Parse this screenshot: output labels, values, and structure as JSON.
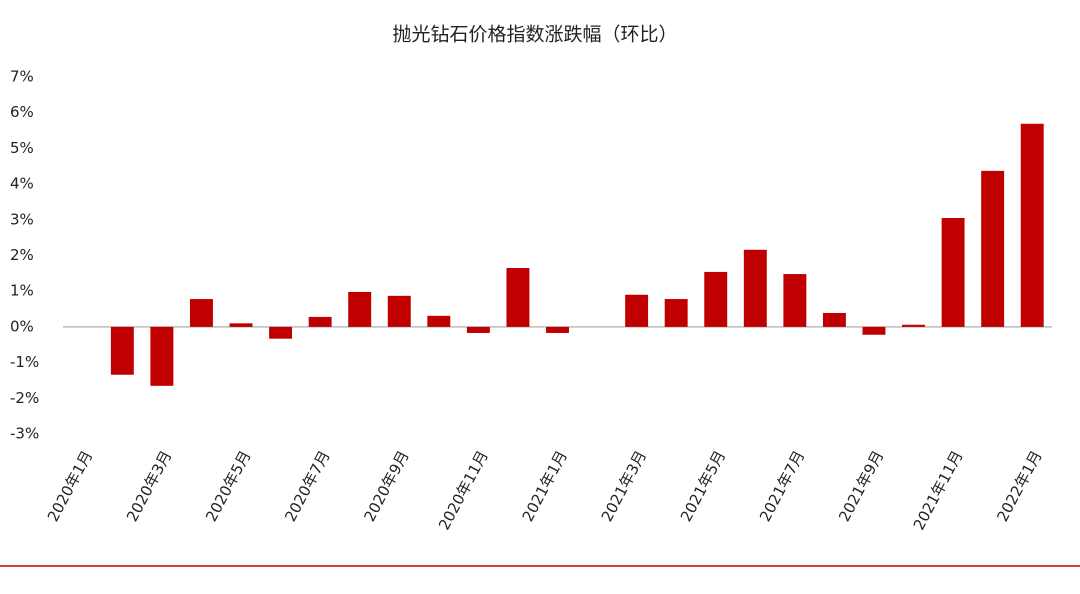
{
  "chart_data": {
    "type": "bar",
    "title": "抛光钻石价格指数涨跌幅（环比）",
    "categories": [
      "2020年1月",
      null,
      "2020年3月",
      null,
      "2020年5月",
      null,
      "2020年7月",
      null,
      "2020年9月",
      null,
      "2020年11月",
      null,
      "2021年1月",
      null,
      "2021年3月",
      null,
      "2021年5月",
      null,
      "2021年7月",
      null,
      "2021年9月",
      null,
      "2021年11月",
      null,
      "2022年1月"
    ],
    "values": [
      null,
      -1.34,
      -1.65,
      0.78,
      0.1,
      -0.33,
      0.28,
      0.98,
      0.87,
      0.31,
      -0.17,
      1.65,
      -0.17,
      null,
      0.9,
      0.78,
      1.54,
      2.16,
      1.48,
      0.39,
      -0.22,
      0.06,
      3.05,
      4.37,
      5.69
    ],
    "color": "#c00000",
    "ylim": [
      -3,
      7
    ],
    "yticks": [
      {
        "value": -3,
        "label": "-3%"
      },
      {
        "value": -2,
        "label": "-2%"
      },
      {
        "value": -1,
        "label": "-1%"
      },
      {
        "value": 0,
        "label": "0%"
      },
      {
        "value": 1,
        "label": "1%"
      },
      {
        "value": 2,
        "label": "2%"
      },
      {
        "value": 3,
        "label": "3%"
      },
      {
        "value": 4,
        "label": "4%"
      },
      {
        "value": 5,
        "label": "5%"
      },
      {
        "value": 6,
        "label": "6%"
      },
      {
        "value": 7,
        "label": "7%"
      }
    ]
  }
}
